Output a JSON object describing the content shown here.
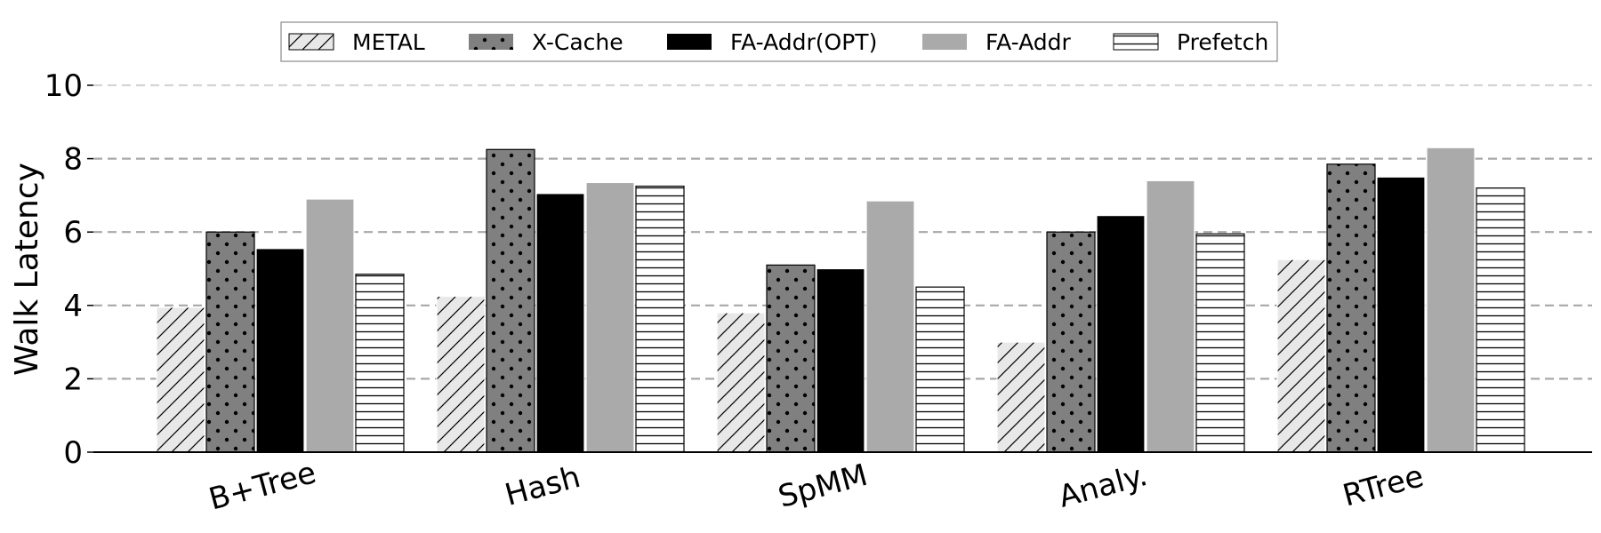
{
  "chart_data": {
    "type": "bar",
    "title": "",
    "xlabel": "",
    "ylabel": "Walk Latency",
    "ylim": [
      0,
      10
    ],
    "yticks": [
      0,
      2,
      4,
      6,
      8,
      10
    ],
    "grid": true,
    "legend_position": "top-center",
    "categories": [
      "B+Tree",
      "Hash",
      "SpMM",
      "Analy.",
      "RTree"
    ],
    "series": [
      {
        "name": "METAL",
        "values": [
          3.95,
          4.25,
          3.8,
          3.0,
          5.25
        ],
        "pattern": "diagonal-hatch",
        "color": "#e8e8e8"
      },
      {
        "name": "X-Cache",
        "values": [
          6.0,
          8.25,
          5.1,
          6.0,
          7.85
        ],
        "pattern": "dots",
        "color": "#808080"
      },
      {
        "name": "FA-Addr(OPT)",
        "values": [
          5.55,
          7.05,
          5.0,
          6.45,
          7.5
        ],
        "pattern": "solid",
        "color": "#000000"
      },
      {
        "name": "FA-Addr",
        "values": [
          6.9,
          7.35,
          6.85,
          7.4,
          8.3
        ],
        "pattern": "solid",
        "color": "#aaaaaa"
      },
      {
        "name": "Prefetch",
        "values": [
          4.85,
          7.25,
          4.5,
          5.95,
          7.2
        ],
        "pattern": "horizontal-lines",
        "color": "#ffffff"
      }
    ]
  }
}
